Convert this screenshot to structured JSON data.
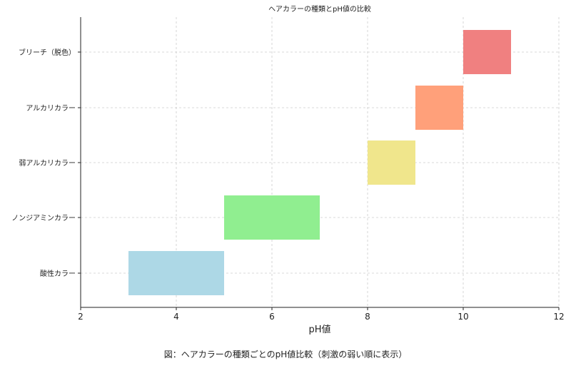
{
  "chart_data": {
    "type": "bar",
    "orientation": "horizontal",
    "title": "ヘアカラーの種類とpH値の比較",
    "xlabel": "pH値",
    "ylabel": "",
    "xlim": [
      2,
      12
    ],
    "xticks": [
      2,
      4,
      6,
      8,
      10,
      12
    ],
    "grid": true,
    "categories": [
      "酸性カラー",
      "ノンジアミンカラー",
      "弱アルカリカラー",
      "アルカリカラー",
      "ブリーチ（脱色）"
    ],
    "ranges": [
      [
        3,
        5
      ],
      [
        5,
        7
      ],
      [
        8,
        9
      ],
      [
        9,
        10
      ],
      [
        10,
        11
      ]
    ],
    "colors": [
      "#add8e6",
      "#90ee90",
      "#f0e68c",
      "#ffa07a",
      "#f08080"
    ]
  },
  "caption": "図：ヘアカラーの種類ごとのpH値比較（刺激の弱い順に表示）"
}
